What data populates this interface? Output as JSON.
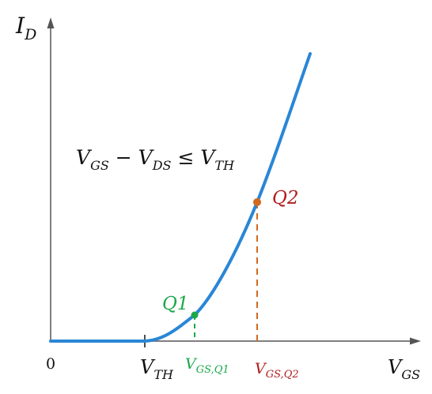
{
  "labels": {
    "y_axis": "I",
    "y_axis_sub": "D",
    "x_axis": "V",
    "x_axis_sub": "GS",
    "origin": "0",
    "threshold": "V",
    "threshold_sub": "TH",
    "vgs_q1": "V",
    "vgs_q1_sub": "GS,Q1",
    "vgs_q2": "V",
    "vgs_q2_sub": "GS,Q2",
    "q1": "Q1",
    "q2": "Q2",
    "condition": {
      "v1": "V",
      "v1_sub": "GS",
      "minus": " − ",
      "v2": "V",
      "v2_sub": "DS",
      "leq": " ≤ ",
      "v3": "V",
      "v3_sub": "TH"
    }
  },
  "colors": {
    "curve": "#2a86d6",
    "axis": "#555555",
    "q1": "#1aa84a",
    "q2_point": "#d2691e",
    "q2_label": "#b01c1c",
    "q2_dash": "#d2691e",
    "text": "#111111"
  }
}
